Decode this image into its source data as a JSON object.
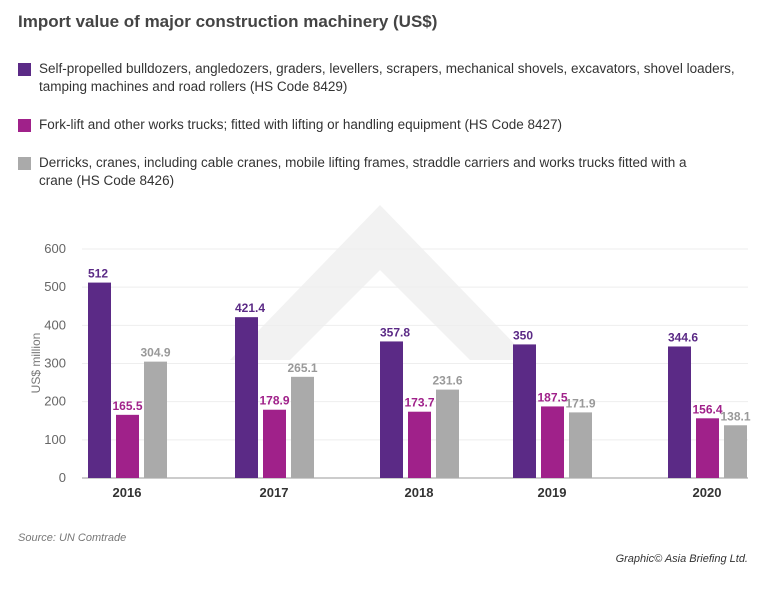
{
  "chart_data": {
    "type": "bar",
    "title": "Import value of major construction machinery (US$)",
    "ylabel": "US$ million",
    "xlabel": "",
    "ylim": [
      0,
      600
    ],
    "yticks": [
      "0",
      "100",
      "200",
      "300",
      "400",
      "500",
      "600"
    ],
    "grid": true,
    "legend_position": "top",
    "categories": [
      "2016",
      "2017",
      "2018",
      "2019",
      "2020"
    ],
    "series": [
      {
        "name": "Self-propelled bulldozers, angledozers, graders, levellers, scrapers, mechanical shovels, excavators, shovel loaders, tamping machines and road rollers (HS Code 8429)",
        "color": "#5b2a86",
        "values": [
          512,
          421.4,
          357.8,
          350,
          344.6
        ],
        "labels": [
          "512",
          "421.4",
          "357.8",
          "350",
          "344.6"
        ]
      },
      {
        "name": "Fork-lift and other works trucks; fitted with lifting or handling equipment (HS Code 8427)",
        "color": "#a0218a",
        "values": [
          165.5,
          178.9,
          173.7,
          187.5,
          156.4
        ],
        "labels": [
          "165.5",
          "178.9",
          "173.7",
          "187.5",
          "156.4"
        ]
      },
      {
        "name": "Derricks, cranes, including cable cranes, mobile lifting frames, straddle carriers and works trucks fitted with a crane (HS Code 8426)",
        "color": "#aaaaaa",
        "values": [
          304.9,
          265.1,
          231.6,
          171.9,
          138.1
        ],
        "labels": [
          "304.9",
          "265.1",
          "231.6",
          "171.9",
          "138.1"
        ]
      }
    ]
  },
  "source": "Source: UN Comtrade",
  "credit": "Graphic© Asia Briefing Ltd."
}
